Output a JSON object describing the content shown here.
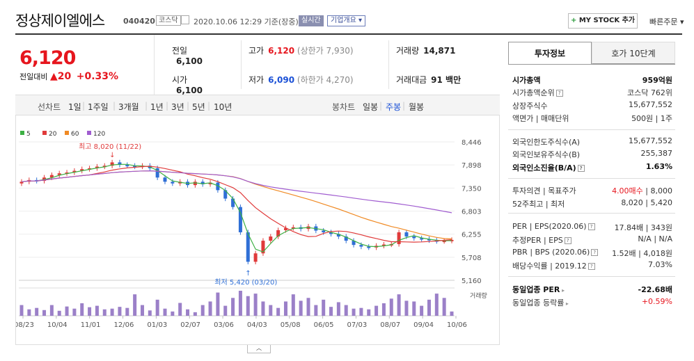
{
  "header": {
    "name": "정상제이엘에스",
    "code": "040420",
    "market": "코스닥",
    "datetime": "2020.10.06 12:29  기준(장중)",
    "realtime": "실시간",
    "overview": "기업개요 ▾",
    "mystock": "MY STOCK 추가",
    "mystock_plus": "+",
    "quick_order": "빠른주문 ▾"
  },
  "price": {
    "current": "6,120",
    "change_label": "전일대비",
    "change_arrow": "▲",
    "change_value": "20",
    "change_pct": "+0.33%"
  },
  "quote": {
    "prev_label": "전일",
    "prev": "6,100",
    "open_label": "시가",
    "open": "6,100",
    "high_label": "고가",
    "high": "6,120",
    "upper_limit": "(상한가 7,930)",
    "low_label": "저가",
    "low": "6,090",
    "lower_limit": "(하한가 4,270)",
    "volume_label": "거래량",
    "volume": "14,871",
    "amount_label": "거래대금",
    "amount": "91 백만"
  },
  "toolbar": {
    "line_label": "선차트",
    "periods": [
      "1일",
      "1주일",
      "3개월",
      "1년",
      "3년",
      "5년",
      "10년"
    ],
    "candle_label": "봉차트",
    "candles": [
      "일봉",
      "주봉",
      "월봉"
    ],
    "active_candle": "주봉"
  },
  "chart_data": {
    "type": "candlestick",
    "legend": [
      {
        "name": "5",
        "color": "#3cb043"
      },
      {
        "name": "20",
        "color": "#e03a3a"
      },
      {
        "name": "60",
        "color": "#f08a24"
      },
      {
        "name": "120",
        "color": "#a05cd0"
      }
    ],
    "y_ticks": [
      "8,446",
      "7,898",
      "7,350",
      "6,803",
      "6,255",
      "5,708",
      "5,160"
    ],
    "ylim": [
      5160,
      8446
    ],
    "x_ticks": [
      "08/23",
      "10/04",
      "11/01",
      "12/06",
      "01/03",
      "02/07",
      "03/06",
      "04/03",
      "05/08",
      "06/05",
      "07/03",
      "08/07",
      "09/04",
      "10/06"
    ],
    "high_annotation": "최고 8,020 (11/22)",
    "low_annotation": "최저 5,420 (03/20)",
    "volume_label": "거래량",
    "closes": [
      7500,
      7540,
      7520,
      7600,
      7660,
      7700,
      7720,
      7760,
      7800,
      7820,
      7860,
      7880,
      7960,
      7900,
      7880,
      7860,
      7880,
      7820,
      7600,
      7500,
      7460,
      7500,
      7420,
      7500,
      7440,
      7480,
      7300,
      7100,
      6900,
      6300,
      5600,
      5800,
      6100,
      6200,
      6350,
      6400,
      6420,
      6380,
      6440,
      6340,
      6300,
      6260,
      6200,
      6100,
      6000,
      5960,
      5940,
      5980,
      6010,
      6020,
      6300,
      6200,
      6160,
      6140,
      6110,
      6090,
      6100,
      6120
    ],
    "volumes": [
      30,
      18,
      22,
      16,
      30,
      14,
      26,
      20,
      35,
      24,
      28,
      18,
      20,
      25,
      22,
      60,
      30,
      15,
      45,
      20,
      12,
      36,
      18,
      10,
      30,
      40,
      65,
      28,
      50,
      70,
      55,
      62,
      40,
      30,
      22,
      40,
      60,
      42,
      50,
      30,
      45,
      25,
      38,
      30,
      20,
      22,
      18,
      28,
      35,
      48,
      60,
      42,
      40,
      28,
      45,
      62,
      50,
      12
    ]
  },
  "side": {
    "tab_active": "투자정보",
    "tab_other": "호가 10단계",
    "rows": [
      {
        "l": "시가총액",
        "r": "959억원"
      },
      {
        "l": "시가총액순위",
        "r": "코스닥 762위"
      },
      {
        "l": "상장주식수",
        "r": "15,677,552"
      },
      {
        "l": "액면가 | 매매단위",
        "r": "500원 | 1주"
      },
      {
        "l": "외국인한도주식수(A)",
        "r": "15,677,552"
      },
      {
        "l": "외국인보유주식수(B)",
        "r": "255,387"
      },
      {
        "l": "외국인소진율(B/A)",
        "r": "1.63%"
      },
      {
        "l": "투자의견 | 목표주가",
        "r_red": "4.00매수",
        "r": " | 8,000"
      },
      {
        "l": "52주최고 | 최저",
        "r": "8,020 | 5,420"
      },
      {
        "l": "PER | EPS(2020.06)",
        "r": "17.84배 | 343원"
      },
      {
        "l": "추정PER | EPS",
        "r": "N/A | N/A"
      },
      {
        "l": "PBR | BPS (2020.06)",
        "r": "1.52배 | 4,018원"
      },
      {
        "l": "배당수익률 | 2019.12",
        "r": "7.03%"
      },
      {
        "l": "동일업종 PER",
        "r": "-22.68배"
      },
      {
        "l": "동일업종 등락률",
        "r": "+0.59%"
      }
    ]
  }
}
